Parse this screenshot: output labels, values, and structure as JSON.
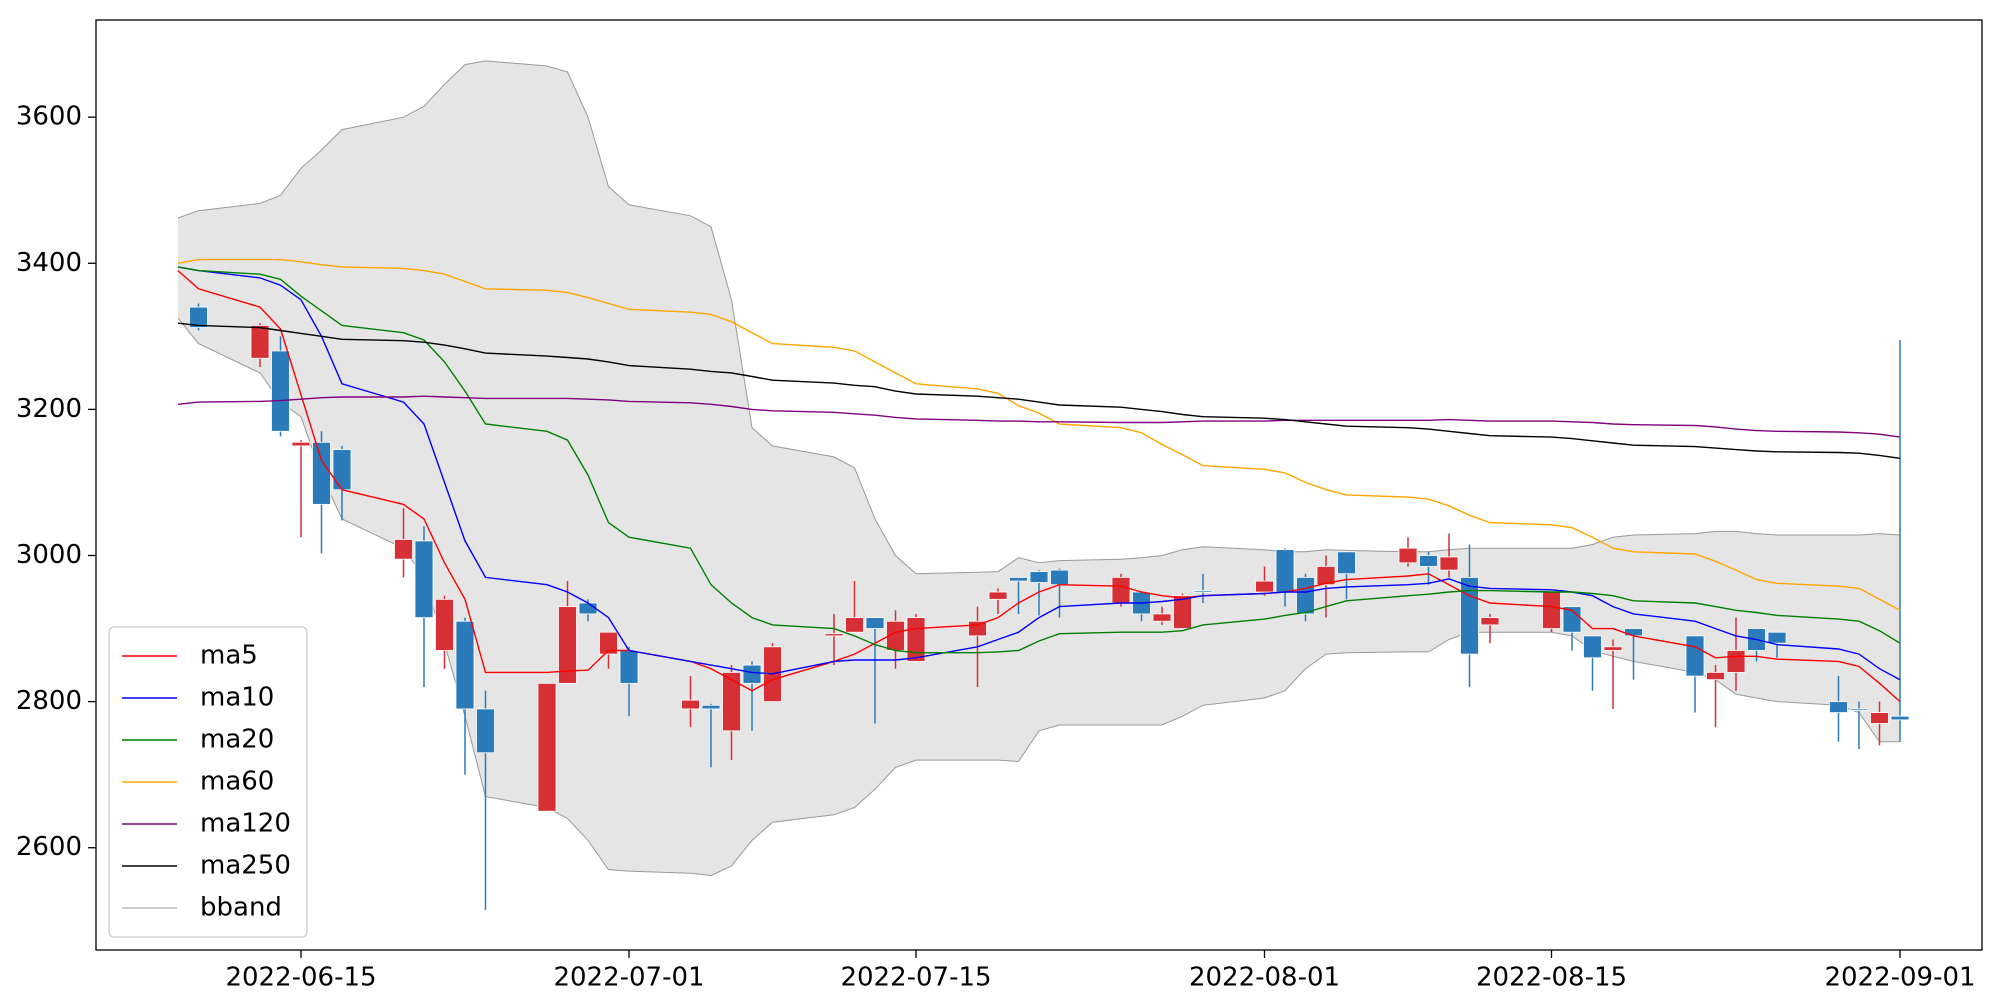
{
  "chart_data": {
    "type": "candlestick",
    "x": [
      "2022-06-09",
      "2022-06-10",
      "2022-06-13",
      "2022-06-14",
      "2022-06-15",
      "2022-06-16",
      "2022-06-17",
      "2022-06-20",
      "2022-06-21",
      "2022-06-22",
      "2022-06-23",
      "2022-06-24",
      "2022-06-27",
      "2022-06-28",
      "2022-06-29",
      "2022-06-30",
      "2022-07-01",
      "2022-07-04",
      "2022-07-05",
      "2022-07-06",
      "2022-07-07",
      "2022-07-08",
      "2022-07-11",
      "2022-07-12",
      "2022-07-13",
      "2022-07-14",
      "2022-07-15",
      "2022-07-18",
      "2022-07-19",
      "2022-07-20",
      "2022-07-21",
      "2022-07-22",
      "2022-07-25",
      "2022-07-26",
      "2022-07-27",
      "2022-07-28",
      "2022-07-29",
      "2022-08-01",
      "2022-08-02",
      "2022-08-03",
      "2022-08-04",
      "2022-08-05",
      "2022-08-08",
      "2022-08-09",
      "2022-08-10",
      "2022-08-11",
      "2022-08-12",
      "2022-08-15",
      "2022-08-16",
      "2022-08-17",
      "2022-08-18",
      "2022-08-19",
      "2022-08-22",
      "2022-08-23",
      "2022-08-24",
      "2022-08-25",
      "2022-08-26",
      "2022-08-29",
      "2022-08-30",
      "2022-08-31",
      "2022-09-01"
    ],
    "open": [
      null,
      3340,
      3270,
      3280,
      3150,
      3155,
      3145,
      2995,
      3020,
      2870,
      2910,
      2790,
      2650,
      2825,
      2935,
      2865,
      2870,
      2790,
      2795,
      2760,
      2850,
      2800,
      2890,
      2895,
      2915,
      2870,
      2855,
      2890,
      2940,
      2970,
      2978,
      2980,
      2935,
      2950,
      2910,
      2900,
      2952,
      2950,
      3008,
      2970,
      2960,
      3005,
      2990,
      3000,
      2980,
      2970,
      2905,
      2900,
      2930,
      2890,
      2870,
      2900,
      2890,
      2830,
      2840,
      2900,
      2895,
      2800,
      2790,
      2770,
      2780
    ],
    "high": [
      null,
      3345,
      3318,
      3300,
      3158,
      3170,
      3150,
      3065,
      3040,
      2945,
      2915,
      2815,
      2825,
      2965,
      2940,
      2895,
      2875,
      2835,
      2797,
      2850,
      2855,
      2880,
      2920,
      2965,
      2915,
      2925,
      2920,
      2930,
      2955,
      2970,
      2980,
      2982,
      2975,
      2950,
      2930,
      2948,
      2975,
      2985,
      3010,
      2975,
      3000,
      3005,
      3025,
      3005,
      3030,
      3015,
      2920,
      2950,
      2930,
      2890,
      2885,
      2900,
      2890,
      2850,
      2915,
      2900,
      2895,
      2835,
      2800,
      2800,
      3295
    ],
    "low": [
      null,
      3308,
      3258,
      3163,
      3025,
      3003,
      3048,
      2970,
      2820,
      2845,
      2700,
      2515,
      2650,
      2825,
      2910,
      2845,
      2780,
      2765,
      2710,
      2720,
      2760,
      2800,
      2850,
      2895,
      2770,
      2845,
      2855,
      2820,
      2920,
      2920,
      2918,
      2915,
      2930,
      2910,
      2905,
      2900,
      2935,
      2945,
      2930,
      2910,
      2915,
      2940,
      2985,
      2960,
      2970,
      2820,
      2880,
      2895,
      2870,
      2815,
      2790,
      2830,
      2785,
      2765,
      2815,
      2855,
      2860,
      2745,
      2735,
      2740,
      2745
    ],
    "close": [
      null,
      3312,
      3315,
      3170,
      3155,
      3070,
      3090,
      3022,
      2915,
      2940,
      2790,
      2730,
      2825,
      2930,
      2920,
      2895,
      2825,
      2802,
      2790,
      2840,
      2825,
      2875,
      2893,
      2915,
      2900,
      2910,
      2915,
      2910,
      2950,
      2965,
      2963,
      2960,
      2970,
      2920,
      2920,
      2945,
      2950,
      2965,
      2950,
      2920,
      2985,
      2975,
      3010,
      2985,
      2998,
      2865,
      2915,
      2950,
      2895,
      2860,
      2875,
      2890,
      2835,
      2840,
      2870,
      2870,
      2880,
      2785,
      2788,
      2785,
      2775
    ],
    "up_color": "#d62f35",
    "down_color": "#2b7bba",
    "series": [
      {
        "name": "ma5",
        "color": "#ff0000",
        "values": [
          3390,
          3365,
          3340,
          3310,
          3220,
          3130,
          3090,
          3070,
          3050,
          2990,
          2940,
          2840,
          2840,
          2842,
          2843,
          2870,
          2870,
          2855,
          2845,
          2830,
          2815,
          2830,
          2855,
          2865,
          2880,
          2895,
          2900,
          2905,
          2915,
          2935,
          2950,
          2960,
          2958,
          2950,
          2945,
          2942,
          2945,
          2948,
          2950,
          2955,
          2962,
          2967,
          2972,
          2975,
          2960,
          2945,
          2935,
          2930,
          2925,
          2900,
          2900,
          2890,
          2875,
          2860,
          2862,
          2862,
          2858,
          2855,
          2848,
          2825,
          2800
        ]
      },
      {
        "name": "ma10",
        "color": "#0000ff",
        "values": [
          3395,
          3390,
          3380,
          3370,
          3350,
          3300,
          3235,
          3210,
          3180,
          3100,
          3020,
          2970,
          2960,
          2950,
          2935,
          2915,
          2870,
          2855,
          2850,
          2845,
          2840,
          2838,
          2855,
          2857,
          2857,
          2857,
          2860,
          2875,
          2885,
          2895,
          2915,
          2930,
          2935,
          2935,
          2937,
          2940,
          2945,
          2948,
          2950,
          2950,
          2955,
          2957,
          2960,
          2962,
          2968,
          2958,
          2955,
          2953,
          2950,
          2945,
          2930,
          2920,
          2910,
          2900,
          2890,
          2885,
          2878,
          2872,
          2865,
          2845,
          2830
        ]
      },
      {
        "name": "ma20",
        "color": "#008000",
        "values": [
          3395,
          3390,
          3385,
          3378,
          3355,
          3335,
          3315,
          3305,
          3295,
          3265,
          3225,
          3180,
          3170,
          3158,
          3110,
          3045,
          3025,
          3010,
          2960,
          2935,
          2915,
          2905,
          2900,
          2890,
          2878,
          2870,
          2867,
          2867,
          2868,
          2870,
          2883,
          2893,
          2895,
          2895,
          2895,
          2897,
          2905,
          2913,
          2918,
          2922,
          2930,
          2938,
          2945,
          2947,
          2950,
          2952,
          2952,
          2950,
          2950,
          2948,
          2945,
          2938,
          2935,
          2930,
          2925,
          2922,
          2918,
          2913,
          2910,
          2897,
          2880
        ]
      },
      {
        "name": "ma60",
        "color": "#ffa500",
        "values": [
          3400,
          3405,
          3405,
          3405,
          3402,
          3398,
          3395,
          3393,
          3390,
          3385,
          3375,
          3365,
          3363,
          3360,
          3353,
          3345,
          3337,
          3333,
          3330,
          3320,
          3305,
          3290,
          3285,
          3280,
          3265,
          3250,
          3235,
          3228,
          3222,
          3205,
          3195,
          3180,
          3175,
          3168,
          3152,
          3138,
          3123,
          3118,
          3113,
          3100,
          3090,
          3083,
          3080,
          3077,
          3068,
          3055,
          3045,
          3042,
          3038,
          3025,
          3010,
          3005,
          3002,
          2992,
          2980,
          2967,
          2962,
          2958,
          2955,
          2940,
          2925
        ]
      },
      {
        "name": "ma120",
        "color": "#800080",
        "values": [
          3207,
          3210,
          3211,
          3212,
          3214,
          3216,
          3217,
          3217,
          3218,
          3217,
          3216,
          3215,
          3215,
          3215,
          3214,
          3213,
          3211,
          3209,
          3207,
          3204,
          3200,
          3198,
          3196,
          3194,
          3192,
          3189,
          3187,
          3185,
          3184,
          3184,
          3183,
          3183,
          3182,
          3182,
          3182,
          3183,
          3184,
          3184,
          3185,
          3185,
          3185,
          3185,
          3185,
          3185,
          3186,
          3185,
          3184,
          3184,
          3183,
          3182,
          3180,
          3179,
          3178,
          3176,
          3173,
          3171,
          3170,
          3169,
          3168,
          3166,
          3162
        ]
      },
      {
        "name": "ma250",
        "color": "#000000",
        "values": [
          3318,
          3315,
          3312,
          3308,
          3304,
          3300,
          3296,
          3294,
          3292,
          3288,
          3283,
          3277,
          3273,
          3271,
          3269,
          3265,
          3260,
          3255,
          3252,
          3250,
          3245,
          3240,
          3236,
          3233,
          3231,
          3225,
          3221,
          3218,
          3216,
          3214,
          3210,
          3206,
          3203,
          3200,
          3197,
          3193,
          3190,
          3188,
          3186,
          3183,
          3180,
          3177,
          3175,
          3173,
          3170,
          3167,
          3164,
          3162,
          3160,
          3157,
          3154,
          3151,
          3149,
          3147,
          3145,
          3143,
          3142,
          3141,
          3140,
          3137,
          3133
        ]
      },
      {
        "name": "bband",
        "color": "#999999",
        "fill": "#e5e5e5",
        "upper": [
          3462,
          3472,
          3482,
          3493,
          3530,
          3555,
          3583,
          3600,
          3615,
          3645,
          3672,
          3677,
          3670,
          3662,
          3600,
          3505,
          3480,
          3465,
          3450,
          3350,
          3175,
          3150,
          3135,
          3120,
          3050,
          3000,
          2975,
          2977,
          2978,
          2997,
          2990,
          2993,
          2995,
          2997,
          3000,
          3008,
          3012,
          3008,
          3005,
          3005,
          3008,
          3007,
          3005,
          3005,
          3008,
          3010,
          3010,
          3010,
          3010,
          3015,
          3025,
          3028,
          3030,
          3033,
          3033,
          3030,
          3028,
          3028,
          3028,
          3030,
          3028
        ],
        "lower": [
          3325,
          3290,
          3250,
          3210,
          3190,
          3110,
          3050,
          3010,
          2970,
          2880,
          2780,
          2670,
          2655,
          2640,
          2610,
          2570,
          2568,
          2565,
          2562,
          2575,
          2610,
          2635,
          2645,
          2655,
          2680,
          2710,
          2720,
          2720,
          2720,
          2718,
          2760,
          2768,
          2768,
          2768,
          2768,
          2780,
          2795,
          2805,
          2815,
          2845,
          2865,
          2867,
          2868,
          2868,
          2885,
          2895,
          2895,
          2895,
          2890,
          2870,
          2862,
          2855,
          2840,
          2830,
          2810,
          2805,
          2800,
          2795,
          2785,
          2745,
          2745
        ]
      }
    ],
    "xlim": [
      "2022-06-05",
      "2022-09-05"
    ],
    "xticks": [
      "2022-06-15",
      "2022-07-01",
      "2022-07-15",
      "2022-08-01",
      "2022-08-15",
      "2022-09-01"
    ],
    "ylim": [
      2460,
      3733
    ],
    "yticks": [
      2600,
      2800,
      3000,
      3200,
      3400,
      3600
    ],
    "legend": "lower left"
  }
}
